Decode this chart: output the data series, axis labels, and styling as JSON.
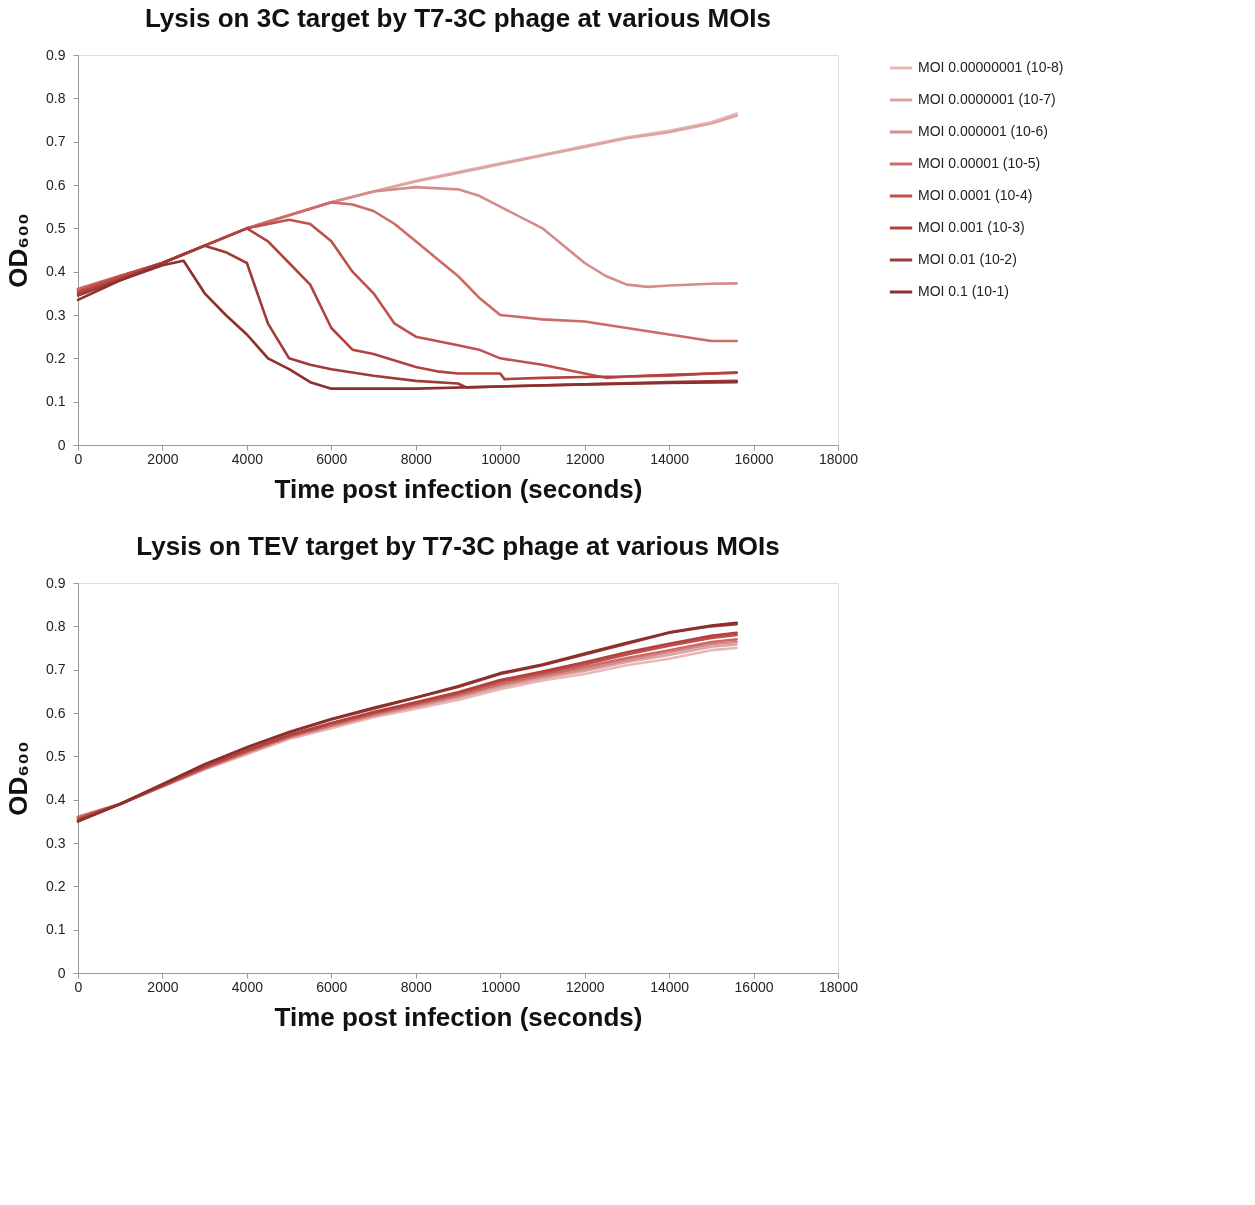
{
  "chart_data": [
    {
      "type": "line",
      "title": "Lysis on 3C target by T7-3C phage at various MOIs",
      "xlabel": "Time post infection (seconds)",
      "ylabel": "OD₆₀₀",
      "xlim": [
        0,
        18000
      ],
      "ylim": [
        0,
        0.9
      ],
      "xticks": [
        0,
        2000,
        4000,
        6000,
        8000,
        10000,
        12000,
        14000,
        16000,
        18000
      ],
      "yticks": [
        0,
        0.1,
        0.2,
        0.3,
        0.4,
        0.5,
        0.6,
        0.7,
        0.8,
        0.9
      ],
      "grid": false,
      "legend": "right",
      "line_style": "solid",
      "marker": "none",
      "series": [
        {
          "name": "MOI 0.00000001 (10-8)",
          "color": "#e6b9b8",
          "x": [
            0,
            1000,
            2000,
            3000,
            4000,
            5000,
            6000,
            7000,
            8000,
            9000,
            10000,
            11000,
            12000,
            13000,
            14000,
            15000,
            15600
          ],
          "values": [
            0.36,
            0.39,
            0.42,
            0.46,
            0.5,
            0.53,
            0.56,
            0.585,
            0.61,
            0.63,
            0.65,
            0.67,
            0.69,
            0.71,
            0.725,
            0.745,
            0.765
          ]
        },
        {
          "name": "MOI 0.0000001 (10-7)",
          "color": "#dca5a4",
          "x": [
            0,
            1000,
            2000,
            3000,
            4000,
            5000,
            6000,
            7000,
            8000,
            9000,
            10000,
            11000,
            12000,
            13000,
            14000,
            15000,
            15600
          ],
          "values": [
            0.36,
            0.39,
            0.42,
            0.46,
            0.5,
            0.53,
            0.56,
            0.585,
            0.608,
            0.628,
            0.648,
            0.668,
            0.688,
            0.708,
            0.722,
            0.742,
            0.76
          ]
        },
        {
          "name": "MOI 0.000001 (10-6)",
          "color": "#d38c8a",
          "x": [
            0,
            1000,
            2000,
            3000,
            4000,
            5000,
            6000,
            7000,
            8000,
            9000,
            9500,
            10000,
            11000,
            12000,
            12500,
            13000,
            13500,
            14000,
            15000,
            15600
          ],
          "values": [
            0.36,
            0.39,
            0.42,
            0.46,
            0.5,
            0.53,
            0.56,
            0.585,
            0.595,
            0.59,
            0.575,
            0.55,
            0.5,
            0.42,
            0.39,
            0.37,
            0.365,
            0.368,
            0.372,
            0.373
          ]
        },
        {
          "name": "MOI 0.00001 (10-5)",
          "color": "#cc6b68",
          "x": [
            0,
            1000,
            2000,
            3000,
            4000,
            5000,
            6000,
            6500,
            7000,
            7500,
            8000,
            8500,
            9000,
            9500,
            10000,
            11000,
            12000,
            13000,
            14000,
            15000,
            15600
          ],
          "values": [
            0.36,
            0.39,
            0.42,
            0.46,
            0.5,
            0.53,
            0.56,
            0.555,
            0.54,
            0.51,
            0.47,
            0.43,
            0.39,
            0.34,
            0.3,
            0.29,
            0.285,
            0.27,
            0.255,
            0.24,
            0.24
          ]
        },
        {
          "name": "MOI 0.0001 (10-4)",
          "color": "#c0504d",
          "x": [
            0,
            1000,
            2000,
            3000,
            4000,
            5000,
            5500,
            6000,
            6500,
            7000,
            7500,
            8000,
            8500,
            9000,
            9500,
            10000,
            11000,
            12000,
            12500,
            13000,
            14000,
            15000,
            15600
          ],
          "values": [
            0.355,
            0.39,
            0.42,
            0.46,
            0.5,
            0.52,
            0.51,
            0.47,
            0.4,
            0.35,
            0.28,
            0.25,
            0.24,
            0.23,
            0.22,
            0.2,
            0.185,
            0.165,
            0.155,
            0.158,
            0.16,
            0.165,
            0.167
          ]
        },
        {
          "name": "MOI 0.001 (10-3)",
          "color": "#b2423f",
          "x": [
            0,
            1000,
            2000,
            3000,
            4000,
            4500,
            5000,
            5500,
            6000,
            6500,
            7000,
            7500,
            8000,
            8500,
            9000,
            10000,
            10100,
            11000,
            12000,
            13000,
            14000,
            15000,
            15600
          ],
          "values": [
            0.35,
            0.385,
            0.42,
            0.46,
            0.5,
            0.47,
            0.42,
            0.37,
            0.27,
            0.22,
            0.21,
            0.195,
            0.18,
            0.17,
            0.165,
            0.165,
            0.152,
            0.155,
            0.157,
            0.158,
            0.162,
            0.165,
            0.167
          ]
        },
        {
          "name": "MOI 0.01 (10-2)",
          "color": "#9e3a37",
          "x": [
            0,
            1000,
            2000,
            3000,
            3500,
            4000,
            4500,
            5000,
            5500,
            6000,
            7000,
            8000,
            9000,
            9200,
            10000,
            12000,
            14000,
            15600
          ],
          "values": [
            0.345,
            0.38,
            0.42,
            0.46,
            0.445,
            0.42,
            0.28,
            0.2,
            0.185,
            0.175,
            0.16,
            0.148,
            0.142,
            0.133,
            0.135,
            0.14,
            0.145,
            0.148
          ]
        },
        {
          "name": "MOI 0.1 (10-1)",
          "color": "#8c2f2d",
          "x": [
            0,
            1000,
            2000,
            2500,
            3000,
            3500,
            4000,
            4500,
            5000,
            5500,
            6000,
            8000,
            10000,
            12000,
            14000,
            15600
          ],
          "values": [
            0.335,
            0.38,
            0.415,
            0.425,
            0.35,
            0.3,
            0.255,
            0.2,
            0.175,
            0.145,
            0.13,
            0.13,
            0.135,
            0.14,
            0.143,
            0.145
          ]
        }
      ]
    },
    {
      "type": "line",
      "title": "Lysis on TEV target by T7-3C phage at various MOIs",
      "xlabel": "Time post infection (seconds)",
      "ylabel": "OD₆₀₀",
      "xlim": [
        0,
        18000
      ],
      "ylim": [
        0,
        0.9
      ],
      "xticks": [
        0,
        2000,
        4000,
        6000,
        8000,
        10000,
        12000,
        14000,
        16000,
        18000
      ],
      "yticks": [
        0,
        0.1,
        0.2,
        0.3,
        0.4,
        0.5,
        0.6,
        0.7,
        0.8,
        0.9
      ],
      "grid": false,
      "legend": "right",
      "line_style": "solid",
      "marker": "none",
      "x": [
        0,
        1000,
        2000,
        3000,
        4000,
        5000,
        6000,
        7000,
        8000,
        9000,
        10000,
        11000,
        12000,
        13000,
        14000,
        15000,
        15600
      ],
      "series": [
        {
          "name": "MOI 0.00000001 (10-8)",
          "color": "#e6b9b8",
          "values": [
            0.36,
            0.39,
            0.43,
            0.47,
            0.505,
            0.54,
            0.565,
            0.59,
            0.61,
            0.63,
            0.655,
            0.675,
            0.69,
            0.71,
            0.725,
            0.745,
            0.75
          ]
        },
        {
          "name": "MOI 0.0000001 (10-7)",
          "color": "#dca5a4",
          "values": [
            0.36,
            0.39,
            0.43,
            0.47,
            0.507,
            0.542,
            0.568,
            0.593,
            0.614,
            0.635,
            0.66,
            0.68,
            0.697,
            0.718,
            0.734,
            0.753,
            0.758
          ]
        },
        {
          "name": "MOI 0.000001 (10-6)",
          "color": "#d38c8a",
          "values": [
            0.36,
            0.39,
            0.431,
            0.472,
            0.509,
            0.544,
            0.57,
            0.595,
            0.616,
            0.638,
            0.664,
            0.684,
            0.701,
            0.722,
            0.74,
            0.759,
            0.764
          ]
        },
        {
          "name": "MOI 0.00001 (10-5)",
          "color": "#cc6b68",
          "values": [
            0.36,
            0.39,
            0.431,
            0.473,
            0.51,
            0.545,
            0.572,
            0.597,
            0.619,
            0.641,
            0.667,
            0.687,
            0.706,
            0.727,
            0.745,
            0.764,
            0.77
          ]
        },
        {
          "name": "MOI 0.0001 (10-4)",
          "color": "#c0504d",
          "values": [
            0.355,
            0.39,
            0.432,
            0.475,
            0.512,
            0.547,
            0.575,
            0.6,
            0.622,
            0.645,
            0.672,
            0.692,
            0.712,
            0.735,
            0.755,
            0.773,
            0.78
          ]
        },
        {
          "name": "MOI 0.001 (10-3)",
          "color": "#b2423f",
          "values": [
            0.355,
            0.39,
            0.433,
            0.476,
            0.514,
            0.549,
            0.577,
            0.602,
            0.625,
            0.648,
            0.676,
            0.696,
            0.717,
            0.74,
            0.76,
            0.778,
            0.785
          ]
        },
        {
          "name": "MOI 0.01 (10-2)",
          "color": "#9e3a37",
          "values": [
            0.35,
            0.39,
            0.435,
            0.48,
            0.52,
            0.555,
            0.585,
            0.61,
            0.635,
            0.66,
            0.69,
            0.71,
            0.735,
            0.76,
            0.785,
            0.8,
            0.805
          ]
        },
        {
          "name": "MOI 0.1 (10-1)",
          "color": "#8c2f2d",
          "values": [
            0.35,
            0.39,
            0.436,
            0.482,
            0.521,
            0.556,
            0.586,
            0.612,
            0.636,
            0.662,
            0.692,
            0.712,
            0.737,
            0.762,
            0.786,
            0.802,
            0.808
          ]
        }
      ]
    }
  ]
}
